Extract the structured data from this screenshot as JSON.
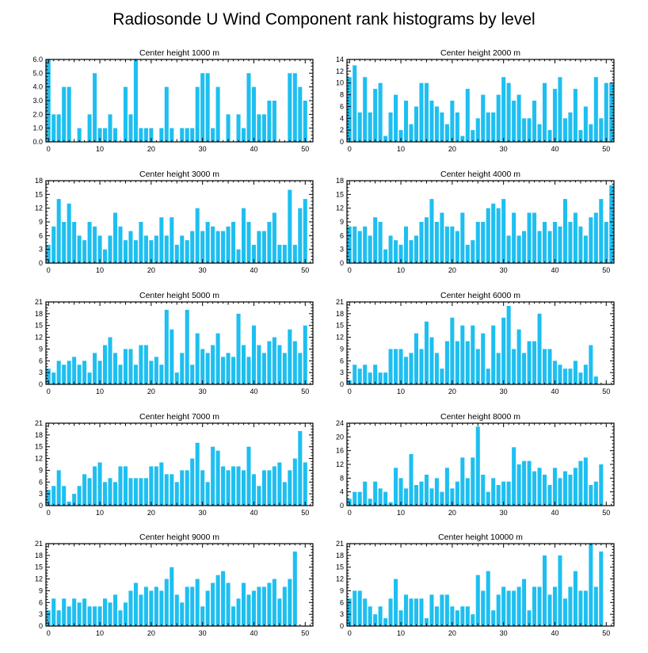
{
  "figure": {
    "title": "Radiosonde U Wind Component rank histograms by level",
    "bar_color": "#1ebff0",
    "x_ticks": [
      0,
      10,
      20,
      30,
      40,
      50
    ],
    "xlim": [
      -0.5,
      51.5
    ]
  },
  "chart_data": [
    {
      "type": "bar",
      "title": "Center height 1000 m",
      "xlabel": "",
      "ylabel": "",
      "ylim": [
        0,
        6
      ],
      "y_ticks": [
        "0.0",
        "1.0",
        "2.0",
        "3.0",
        "4.0",
        "5.0",
        "6.0"
      ],
      "categories": [
        0,
        1,
        2,
        3,
        4,
        5,
        6,
        7,
        8,
        9,
        10,
        11,
        12,
        13,
        14,
        15,
        16,
        17,
        18,
        19,
        20,
        21,
        22,
        23,
        24,
        25,
        26,
        27,
        28,
        29,
        30,
        31,
        32,
        33,
        34,
        35,
        36,
        37,
        38,
        39,
        40,
        41,
        42,
        43,
        44,
        45,
        46,
        47,
        48,
        49,
        50,
        51
      ],
      "values": [
        6,
        2,
        2,
        4,
        4,
        0,
        1,
        0,
        2,
        5,
        1,
        1,
        2,
        1,
        0,
        4,
        2,
        6,
        1,
        1,
        1,
        0,
        1,
        4,
        1,
        0,
        1,
        1,
        1,
        4,
        5,
        5,
        1,
        4,
        0,
        2,
        0,
        2,
        1,
        5,
        4,
        2,
        2,
        3,
        3,
        0,
        0,
        5,
        5,
        4,
        3,
        0
      ]
    },
    {
      "type": "bar",
      "title": "Center height 2000 m",
      "xlabel": "",
      "ylabel": "",
      "ylim": [
        0,
        14
      ],
      "y_ticks": [
        "0",
        "2",
        "4",
        "6",
        "8",
        "10",
        "12",
        "14"
      ],
      "categories": [
        0,
        1,
        2,
        3,
        4,
        5,
        6,
        7,
        8,
        9,
        10,
        11,
        12,
        13,
        14,
        15,
        16,
        17,
        18,
        19,
        20,
        21,
        22,
        23,
        24,
        25,
        26,
        27,
        28,
        29,
        30,
        31,
        32,
        33,
        34,
        35,
        36,
        37,
        38,
        39,
        40,
        41,
        42,
        43,
        44,
        45,
        46,
        47,
        48,
        49,
        50,
        51
      ],
      "values": [
        11,
        13,
        5,
        11,
        5,
        9,
        10,
        1,
        5,
        8,
        2,
        7,
        3,
        6,
        10,
        10,
        7,
        6,
        5,
        3,
        7,
        5,
        1,
        9,
        2,
        4,
        8,
        5,
        5,
        8,
        11,
        10,
        7,
        8,
        4,
        4,
        7,
        3,
        10,
        2,
        9,
        11,
        4,
        5,
        9,
        2,
        6,
        3,
        11,
        4,
        10,
        10
      ]
    },
    {
      "type": "bar",
      "title": "Center height 3000 m",
      "xlabel": "",
      "ylabel": "",
      "ylim": [
        0,
        18
      ],
      "y_ticks": [
        "0",
        "3",
        "6",
        "9",
        "12",
        "15",
        "18"
      ],
      "categories": [
        0,
        1,
        2,
        3,
        4,
        5,
        6,
        7,
        8,
        9,
        10,
        11,
        12,
        13,
        14,
        15,
        16,
        17,
        18,
        19,
        20,
        21,
        22,
        23,
        24,
        25,
        26,
        27,
        28,
        29,
        30,
        31,
        32,
        33,
        34,
        35,
        36,
        37,
        38,
        39,
        40,
        41,
        42,
        43,
        44,
        45,
        46,
        47,
        48,
        49,
        50,
        51
      ],
      "values": [
        4,
        8,
        14,
        9,
        13,
        9,
        6,
        5,
        9,
        8,
        6,
        3,
        6,
        11,
        8,
        5,
        7,
        5,
        9,
        6,
        5,
        6,
        10,
        6,
        10,
        4,
        6,
        5,
        7,
        12,
        7,
        9,
        8,
        7,
        7,
        8,
        9,
        3,
        12,
        9,
        4,
        7,
        7,
        9,
        11,
        4,
        4,
        16,
        4,
        12,
        14,
        0
      ]
    },
    {
      "type": "bar",
      "title": "Center height 4000 m",
      "xlabel": "",
      "ylabel": "",
      "ylim": [
        0,
        18
      ],
      "y_ticks": [
        "0",
        "3",
        "6",
        "9",
        "12",
        "15",
        "18"
      ],
      "categories": [
        0,
        1,
        2,
        3,
        4,
        5,
        6,
        7,
        8,
        9,
        10,
        11,
        12,
        13,
        14,
        15,
        16,
        17,
        18,
        19,
        20,
        21,
        22,
        23,
        24,
        25,
        26,
        27,
        28,
        29,
        30,
        31,
        32,
        33,
        34,
        35,
        36,
        37,
        38,
        39,
        40,
        41,
        42,
        43,
        44,
        45,
        46,
        47,
        48,
        49,
        50,
        51
      ],
      "values": [
        8,
        8,
        7,
        8,
        6,
        10,
        9,
        3,
        6,
        5,
        4,
        8,
        5,
        6,
        9,
        10,
        14,
        9,
        11,
        8,
        8,
        7,
        11,
        4,
        5,
        9,
        9,
        12,
        13,
        12,
        14,
        6,
        11,
        6,
        7,
        11,
        11,
        7,
        9,
        7,
        9,
        8,
        14,
        9,
        11,
        8,
        6,
        10,
        11,
        14,
        9,
        17
      ]
    },
    {
      "type": "bar",
      "title": "Center height 5000 m",
      "xlabel": "",
      "ylabel": "",
      "ylim": [
        0,
        21
      ],
      "y_ticks": [
        "0",
        "3",
        "6",
        "9",
        "12",
        "15",
        "18",
        "21"
      ],
      "categories": [
        0,
        1,
        2,
        3,
        4,
        5,
        6,
        7,
        8,
        9,
        10,
        11,
        12,
        13,
        14,
        15,
        16,
        17,
        18,
        19,
        20,
        21,
        22,
        23,
        24,
        25,
        26,
        27,
        28,
        29,
        30,
        31,
        32,
        33,
        34,
        35,
        36,
        37,
        38,
        39,
        40,
        41,
        42,
        43,
        44,
        45,
        46,
        47,
        48,
        49,
        50,
        51
      ],
      "values": [
        4,
        3,
        6,
        5,
        6,
        7,
        5,
        6,
        3,
        8,
        6,
        10,
        12,
        8,
        5,
        9,
        9,
        5,
        10,
        10,
        6,
        7,
        5,
        19,
        14,
        3,
        8,
        19,
        5,
        13,
        9,
        8,
        10,
        13,
        7,
        8,
        7,
        18,
        10,
        7,
        15,
        10,
        8,
        11,
        12,
        10,
        8,
        14,
        11,
        8,
        15,
        0
      ]
    },
    {
      "type": "bar",
      "title": "Center height 6000 m",
      "xlabel": "",
      "ylabel": "",
      "ylim": [
        0,
        21
      ],
      "y_ticks": [
        "0",
        "3",
        "6",
        "9",
        "12",
        "15",
        "18",
        "21"
      ],
      "categories": [
        0,
        1,
        2,
        3,
        4,
        5,
        6,
        7,
        8,
        9,
        10,
        11,
        12,
        13,
        14,
        15,
        16,
        17,
        18,
        19,
        20,
        21,
        22,
        23,
        24,
        25,
        26,
        27,
        28,
        29,
        30,
        31,
        32,
        33,
        34,
        35,
        36,
        37,
        38,
        39,
        40,
        41,
        42,
        43,
        44,
        45,
        46,
        47,
        48,
        49,
        50,
        51
      ],
      "values": [
        1,
        5,
        4,
        5,
        3,
        5,
        3,
        3,
        9,
        9,
        9,
        7,
        8,
        13,
        9,
        16,
        12,
        8,
        4,
        11,
        17,
        11,
        15,
        11,
        15,
        9,
        13,
        4,
        15,
        8,
        17,
        20,
        9,
        14,
        8,
        11,
        11,
        18,
        9,
        9,
        6,
        5,
        4,
        4,
        6,
        3,
        5,
        10,
        2,
        0,
        0,
        0
      ]
    },
    {
      "type": "bar",
      "title": "Center height 7000 m",
      "xlabel": "",
      "ylabel": "",
      "ylim": [
        0,
        21
      ],
      "y_ticks": [
        "0",
        "3",
        "6",
        "9",
        "12",
        "15",
        "18",
        "21"
      ],
      "categories": [
        0,
        1,
        2,
        3,
        4,
        5,
        6,
        7,
        8,
        9,
        10,
        11,
        12,
        13,
        14,
        15,
        16,
        17,
        18,
        19,
        20,
        21,
        22,
        23,
        24,
        25,
        26,
        27,
        28,
        29,
        30,
        31,
        32,
        33,
        34,
        35,
        36,
        37,
        38,
        39,
        40,
        41,
        42,
        43,
        44,
        45,
        46,
        47,
        48,
        49,
        50,
        51
      ],
      "values": [
        4,
        5,
        9,
        5,
        1,
        3,
        5,
        8,
        7,
        10,
        11,
        6,
        7,
        6,
        10,
        10,
        7,
        7,
        7,
        7,
        10,
        10,
        11,
        8,
        8,
        6,
        9,
        9,
        12,
        16,
        9,
        6,
        15,
        14,
        10,
        9,
        10,
        10,
        9,
        15,
        8,
        5,
        9,
        9,
        10,
        11,
        6,
        9,
        12,
        19,
        11,
        0
      ]
    },
    {
      "type": "bar",
      "title": "Center height 8000 m",
      "xlabel": "",
      "ylabel": "",
      "ylim": [
        0,
        24
      ],
      "y_ticks": [
        "0",
        "2",
        "4",
        "6",
        "8",
        "10",
        "12",
        "14",
        "16",
        "18",
        "20",
        "22",
        "24"
      ],
      "y_tick_labels": [
        "0",
        "4",
        "8",
        "12",
        "16",
        "20",
        "24"
      ],
      "categories": [
        0,
        1,
        2,
        3,
        4,
        5,
        6,
        7,
        8,
        9,
        10,
        11,
        12,
        13,
        14,
        15,
        16,
        17,
        18,
        19,
        20,
        21,
        22,
        23,
        24,
        25,
        26,
        27,
        28,
        29,
        30,
        31,
        32,
        33,
        34,
        35,
        36,
        37,
        38,
        39,
        40,
        41,
        42,
        43,
        44,
        45,
        46,
        47,
        48,
        49,
        50,
        51
      ],
      "values": [
        2,
        4,
        4,
        7,
        2,
        7,
        5,
        4,
        1,
        11,
        8,
        5,
        15,
        6,
        7,
        9,
        5,
        8,
        4,
        11,
        5,
        7,
        14,
        8,
        14,
        23,
        9,
        4,
        8,
        6,
        7,
        7,
        17,
        12,
        13,
        13,
        10,
        11,
        9,
        6,
        11,
        8,
        10,
        9,
        11,
        13,
        14,
        6,
        7,
        12,
        0,
        0
      ]
    },
    {
      "type": "bar",
      "title": "Center height 9000 m",
      "xlabel": "",
      "ylabel": "",
      "ylim": [
        0,
        21
      ],
      "y_ticks": [
        "0",
        "3",
        "6",
        "9",
        "12",
        "15",
        "18",
        "21"
      ],
      "categories": [
        0,
        1,
        2,
        3,
        4,
        5,
        6,
        7,
        8,
        9,
        10,
        11,
        12,
        13,
        14,
        15,
        16,
        17,
        18,
        19,
        20,
        21,
        22,
        23,
        24,
        25,
        26,
        27,
        28,
        29,
        30,
        31,
        32,
        33,
        34,
        35,
        36,
        37,
        38,
        39,
        40,
        41,
        42,
        43,
        44,
        45,
        46,
        47,
        48,
        49,
        50,
        51
      ],
      "values": [
        4,
        7,
        4,
        7,
        5,
        7,
        6,
        7,
        5,
        5,
        5,
        7,
        6,
        8,
        4,
        6,
        9,
        11,
        8,
        10,
        9,
        10,
        9,
        12,
        15,
        8,
        6,
        10,
        10,
        12,
        5,
        9,
        11,
        13,
        14,
        11,
        5,
        7,
        11,
        8,
        9,
        10,
        10,
        11,
        12,
        7,
        10,
        12,
        19,
        0,
        0,
        0
      ]
    },
    {
      "type": "bar",
      "title": "Center height 10000 m",
      "xlabel": "",
      "ylabel": "",
      "ylim": [
        0,
        21
      ],
      "y_ticks": [
        "0",
        "3",
        "6",
        "9",
        "12",
        "15",
        "18",
        "21"
      ],
      "categories": [
        0,
        1,
        2,
        3,
        4,
        5,
        6,
        7,
        8,
        9,
        10,
        11,
        12,
        13,
        14,
        15,
        16,
        17,
        18,
        19,
        20,
        21,
        22,
        23,
        24,
        25,
        26,
        27,
        28,
        29,
        30,
        31,
        32,
        33,
        34,
        35,
        36,
        37,
        38,
        39,
        40,
        41,
        42,
        43,
        44,
        45,
        46,
        47,
        48,
        49,
        50,
        51
      ],
      "values": [
        7,
        9,
        9,
        7,
        5,
        3,
        5,
        2,
        7,
        12,
        4,
        8,
        7,
        7,
        7,
        2,
        8,
        5,
        8,
        8,
        5,
        4,
        5,
        5,
        3,
        13,
        9,
        14,
        4,
        8,
        10,
        9,
        9,
        10,
        12,
        4,
        10,
        10,
        18,
        8,
        10,
        18,
        7,
        10,
        14,
        9,
        9,
        21,
        10,
        19,
        0,
        0
      ]
    }
  ]
}
